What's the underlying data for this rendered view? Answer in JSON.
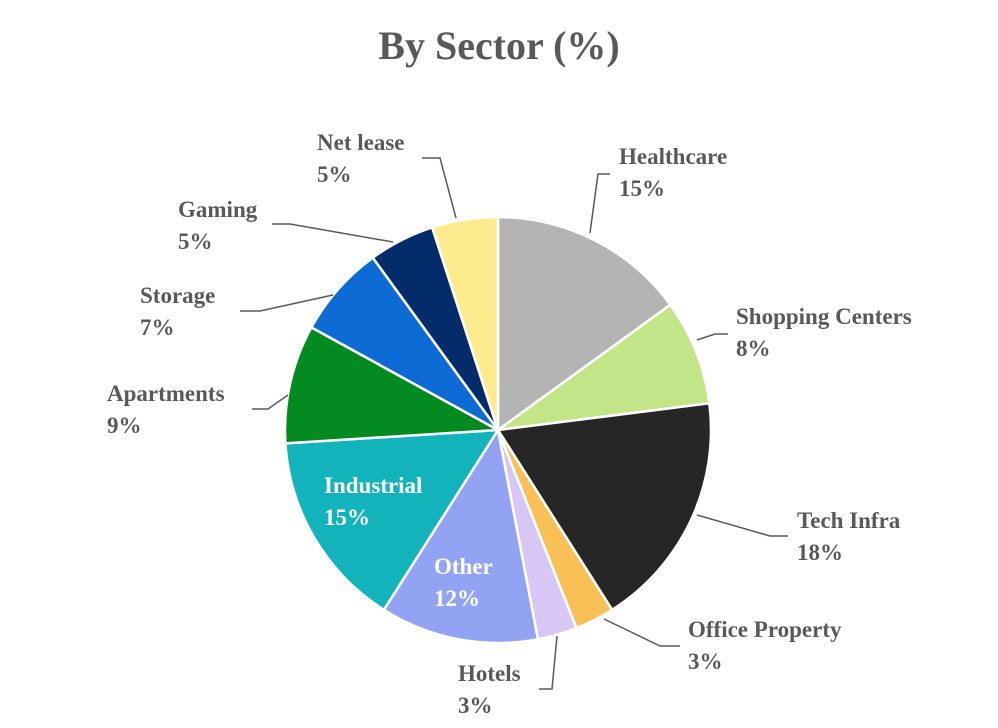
{
  "chart_data": {
    "type": "pie",
    "title": "By Sector (%)",
    "start_angle_deg": 0,
    "direction": "clockwise",
    "label_color": "#595959",
    "slices": [
      {
        "name": "Healthcare",
        "value": 15,
        "pct_label": "15%",
        "color": "#B4B4B4",
        "label_position": "outside"
      },
      {
        "name": "Shopping Centers",
        "value": 8,
        "pct_label": "8%",
        "color": "#C2E588",
        "label_position": "outside"
      },
      {
        "name": "Tech Infra",
        "value": 18,
        "pct_label": "18%",
        "color": "#262626",
        "label_position": "outside"
      },
      {
        "name": "Office Property",
        "value": 3,
        "pct_label": "3%",
        "color": "#F8C057",
        "label_position": "outside"
      },
      {
        "name": "Hotels",
        "value": 3,
        "pct_label": "3%",
        "color": "#D8C6F5",
        "label_position": "outside"
      },
      {
        "name": "Other",
        "value": 12,
        "pct_label": "12%",
        "color": "#93A3F4",
        "label_position": "inside",
        "label_color": "#FFFFFF"
      },
      {
        "name": "Industrial",
        "value": 15,
        "pct_label": "15%",
        "color": "#13B3BB",
        "label_position": "inside",
        "label_color": "#FFFFFF"
      },
      {
        "name": "Apartments",
        "value": 9,
        "pct_label": "9%",
        "color": "#038B22",
        "label_position": "outside"
      },
      {
        "name": "Storage",
        "value": 7,
        "pct_label": "7%",
        "color": "#0C6BD5",
        "label_position": "outside"
      },
      {
        "name": "Gaming",
        "value": 5,
        "pct_label": "5%",
        "color": "#052C6A",
        "label_position": "outside"
      },
      {
        "name": "Net lease",
        "value": 5,
        "pct_label": "5%",
        "color": "#FDEB8D",
        "label_position": "outside"
      }
    ]
  }
}
